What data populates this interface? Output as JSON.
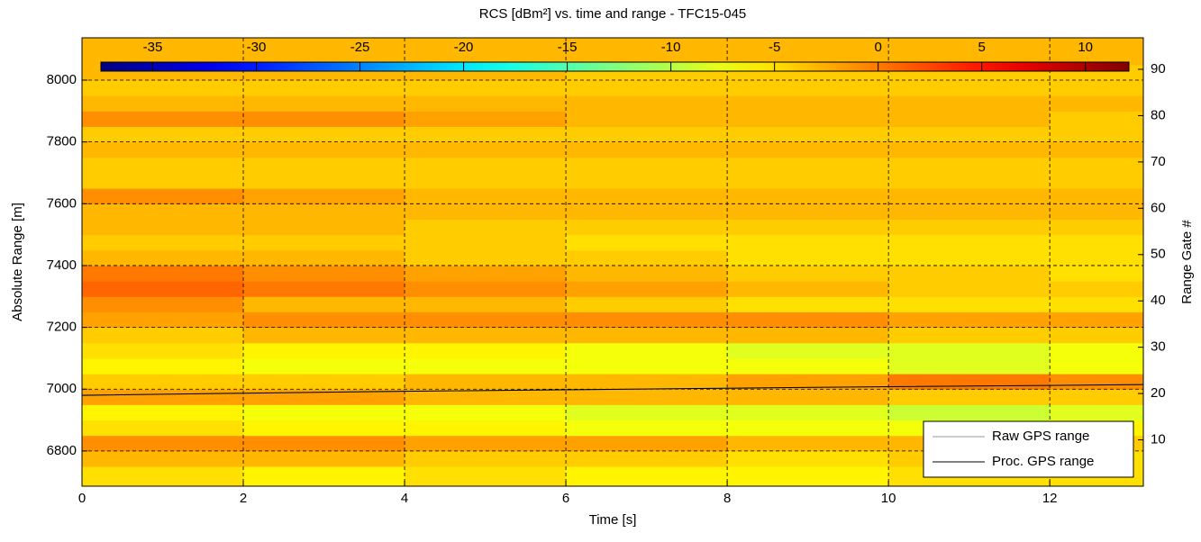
{
  "chart_data": {
    "type": "heatmap",
    "title": "RCS [dBm²] vs. time and range - TFC15-045",
    "x_label": "Time [s]",
    "y_label": "Absolute Range [m]",
    "y2_label": "Range Gate #",
    "xlim": [
      0,
      13.16
    ],
    "xticks": [
      0,
      2,
      4,
      6,
      8,
      10,
      12
    ],
    "ylim": [
      6686,
      8137
    ],
    "yticks": [
      6800,
      7000,
      7200,
      7400,
      7600,
      7800,
      8000
    ],
    "y2lim": [
      0,
      96.8
    ],
    "y2ticks": [
      10,
      20,
      30,
      40,
      50,
      60,
      70,
      80,
      90
    ],
    "grid": true,
    "colormap": "jet",
    "clim": [
      -37.5,
      12.1
    ],
    "cticks": [
      -35,
      -30,
      -25,
      -20,
      -15,
      -10,
      -5,
      0,
      5,
      10
    ],
    "x_edges": [
      0,
      2,
      4,
      6,
      8,
      10,
      12,
      13.16
    ],
    "y_edges": [
      6686,
      6750,
      6800,
      6850,
      6900,
      6950,
      7000,
      7050,
      7100,
      7150,
      7200,
      7250,
      7300,
      7350,
      7400,
      7450,
      7500,
      7550,
      7600,
      7650,
      7700,
      7750,
      7800,
      7850,
      7900,
      7950,
      8000,
      8050,
      8100,
      8137
    ],
    "z": [
      [
        -5,
        -6,
        -5,
        -6,
        -6,
        -5,
        -5
      ],
      [
        -3,
        -3,
        -4,
        -4,
        -5,
        -4,
        -5
      ],
      [
        -1,
        -1,
        -2,
        -2,
        -3,
        -3,
        -4
      ],
      [
        -5,
        -6,
        -6,
        -7,
        -7,
        -7,
        -6
      ],
      [
        -6,
        -7,
        -7,
        -8,
        -8,
        -9,
        -8
      ],
      [
        -2,
        -2,
        -3,
        -3,
        -3,
        -4,
        -4
      ],
      [
        -4,
        -4,
        -3,
        -3,
        -2,
        0,
        -1
      ],
      [
        -6,
        -7,
        -7,
        -7,
        -7,
        -8,
        -7
      ],
      [
        -5,
        -6,
        -6,
        -7,
        -8,
        -8,
        -7
      ],
      [
        -4,
        -3,
        -3,
        -3,
        -3,
        -4,
        -4
      ],
      [
        -2,
        -1,
        -1,
        -1,
        -1,
        -2,
        -2
      ],
      [
        -1,
        -3,
        -3,
        -4,
        -5,
        -5,
        -5
      ],
      [
        1,
        0,
        -1,
        -2,
        -3,
        -4,
        -4
      ],
      [
        0,
        -1,
        -2,
        -3,
        -4,
        -4,
        -5
      ],
      [
        -3,
        -3,
        -4,
        -4,
        -5,
        -5,
        -5
      ],
      [
        -4,
        -4,
        -4,
        -5,
        -5,
        -5,
        -5
      ],
      [
        -3,
        -3,
        -4,
        -4,
        -4,
        -4,
        -4
      ],
      [
        -3,
        -3,
        -3,
        -3,
        -3,
        -3,
        -3
      ],
      [
        -1,
        -2,
        -3,
        -3,
        -3,
        -3,
        -3
      ],
      [
        -4,
        -4,
        -4,
        -4,
        -4,
        -4,
        -4
      ],
      [
        -4,
        -4,
        -4,
        -4,
        -4,
        -4,
        -4
      ],
      [
        -3,
        -3,
        -3,
        -3,
        -3,
        -3,
        -3
      ],
      [
        -4,
        -4,
        -4,
        -4,
        -4,
        -4,
        -4
      ],
      [
        -1,
        -1,
        -2,
        -3,
        -3,
        -3,
        -4
      ],
      [
        -3,
        -3,
        -3,
        -3,
        -3,
        -3,
        -3
      ],
      [
        -4,
        -4,
        -4,
        -4,
        -4,
        -4,
        -4
      ],
      [
        -3,
        -3,
        -3,
        -4,
        -4,
        -4,
        -4
      ],
      [
        -3,
        -3,
        -3,
        -3,
        -3,
        -3,
        -3
      ],
      [
        -3,
        -3,
        -3,
        -3,
        -3,
        -3,
        -3
      ]
    ],
    "series": [
      {
        "name": "Raw GPS range",
        "color": "#999999",
        "x": [
          0,
          2,
          4,
          6,
          8,
          10,
          12,
          13.16
        ],
        "values": [
          6982,
          6986,
          6994,
          6997,
          7004,
          7007,
          7013,
          7016
        ]
      },
      {
        "name": "Proc. GPS range",
        "color": "#000000",
        "x": [
          0,
          2,
          4,
          6,
          8,
          10,
          12,
          13.16
        ],
        "values": [
          6980,
          6987,
          6993,
          6998,
          7003,
          7008,
          7012,
          7015
        ]
      }
    ],
    "legend": "lower right"
  }
}
